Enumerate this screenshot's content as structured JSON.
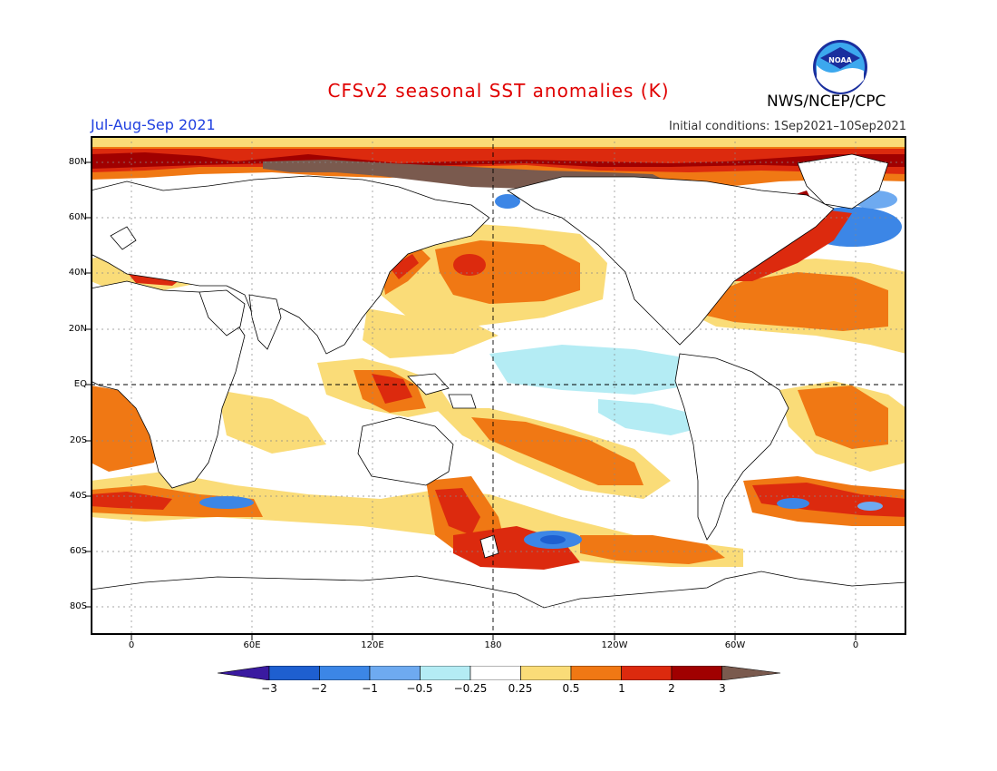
{
  "header": {
    "title": "CFSv2 seasonal SST anomalies (K)",
    "agency": "NWS/NCEP/CPC",
    "season": "Jul-Aug-Sep 2021",
    "initial_conditions": "Initial conditions: 1Sep2021–10Sep2021",
    "logo_text": "NOAA"
  },
  "axes": {
    "lat_labels": [
      "80N",
      "60N",
      "40N",
      "20N",
      "EQ",
      "20S",
      "40S",
      "60S",
      "80S"
    ],
    "lon_labels": [
      "0",
      "60E",
      "120E",
      "180",
      "120W",
      "60W",
      "0"
    ]
  },
  "colorbar": {
    "tick_labels": [
      "−3",
      "−2",
      "−1",
      "−0.5",
      "−0.25",
      "0.25",
      "0.5",
      "1",
      "2",
      "3"
    ],
    "colors": [
      "#3a1aa0",
      "#1e5fd0",
      "#3c86e6",
      "#6eaaf0",
      "#b4ecf4",
      "#ffffff",
      "#fadc78",
      "#f07814",
      "#dc2a0e",
      "#a00000",
      "#7a5a4e"
    ]
  },
  "map_colors": {
    "ocean_neutral": "#ffffff",
    "weak_warm": "#fadc78",
    "warm": "#f07814",
    "strong_warm": "#dc2a0e",
    "very_strong_warm": "#a00000",
    "extreme": "#7a5a4e",
    "weak_cool": "#b4ecf4",
    "cool": "#6eaaf0",
    "strong_cool": "#3c86e6"
  }
}
